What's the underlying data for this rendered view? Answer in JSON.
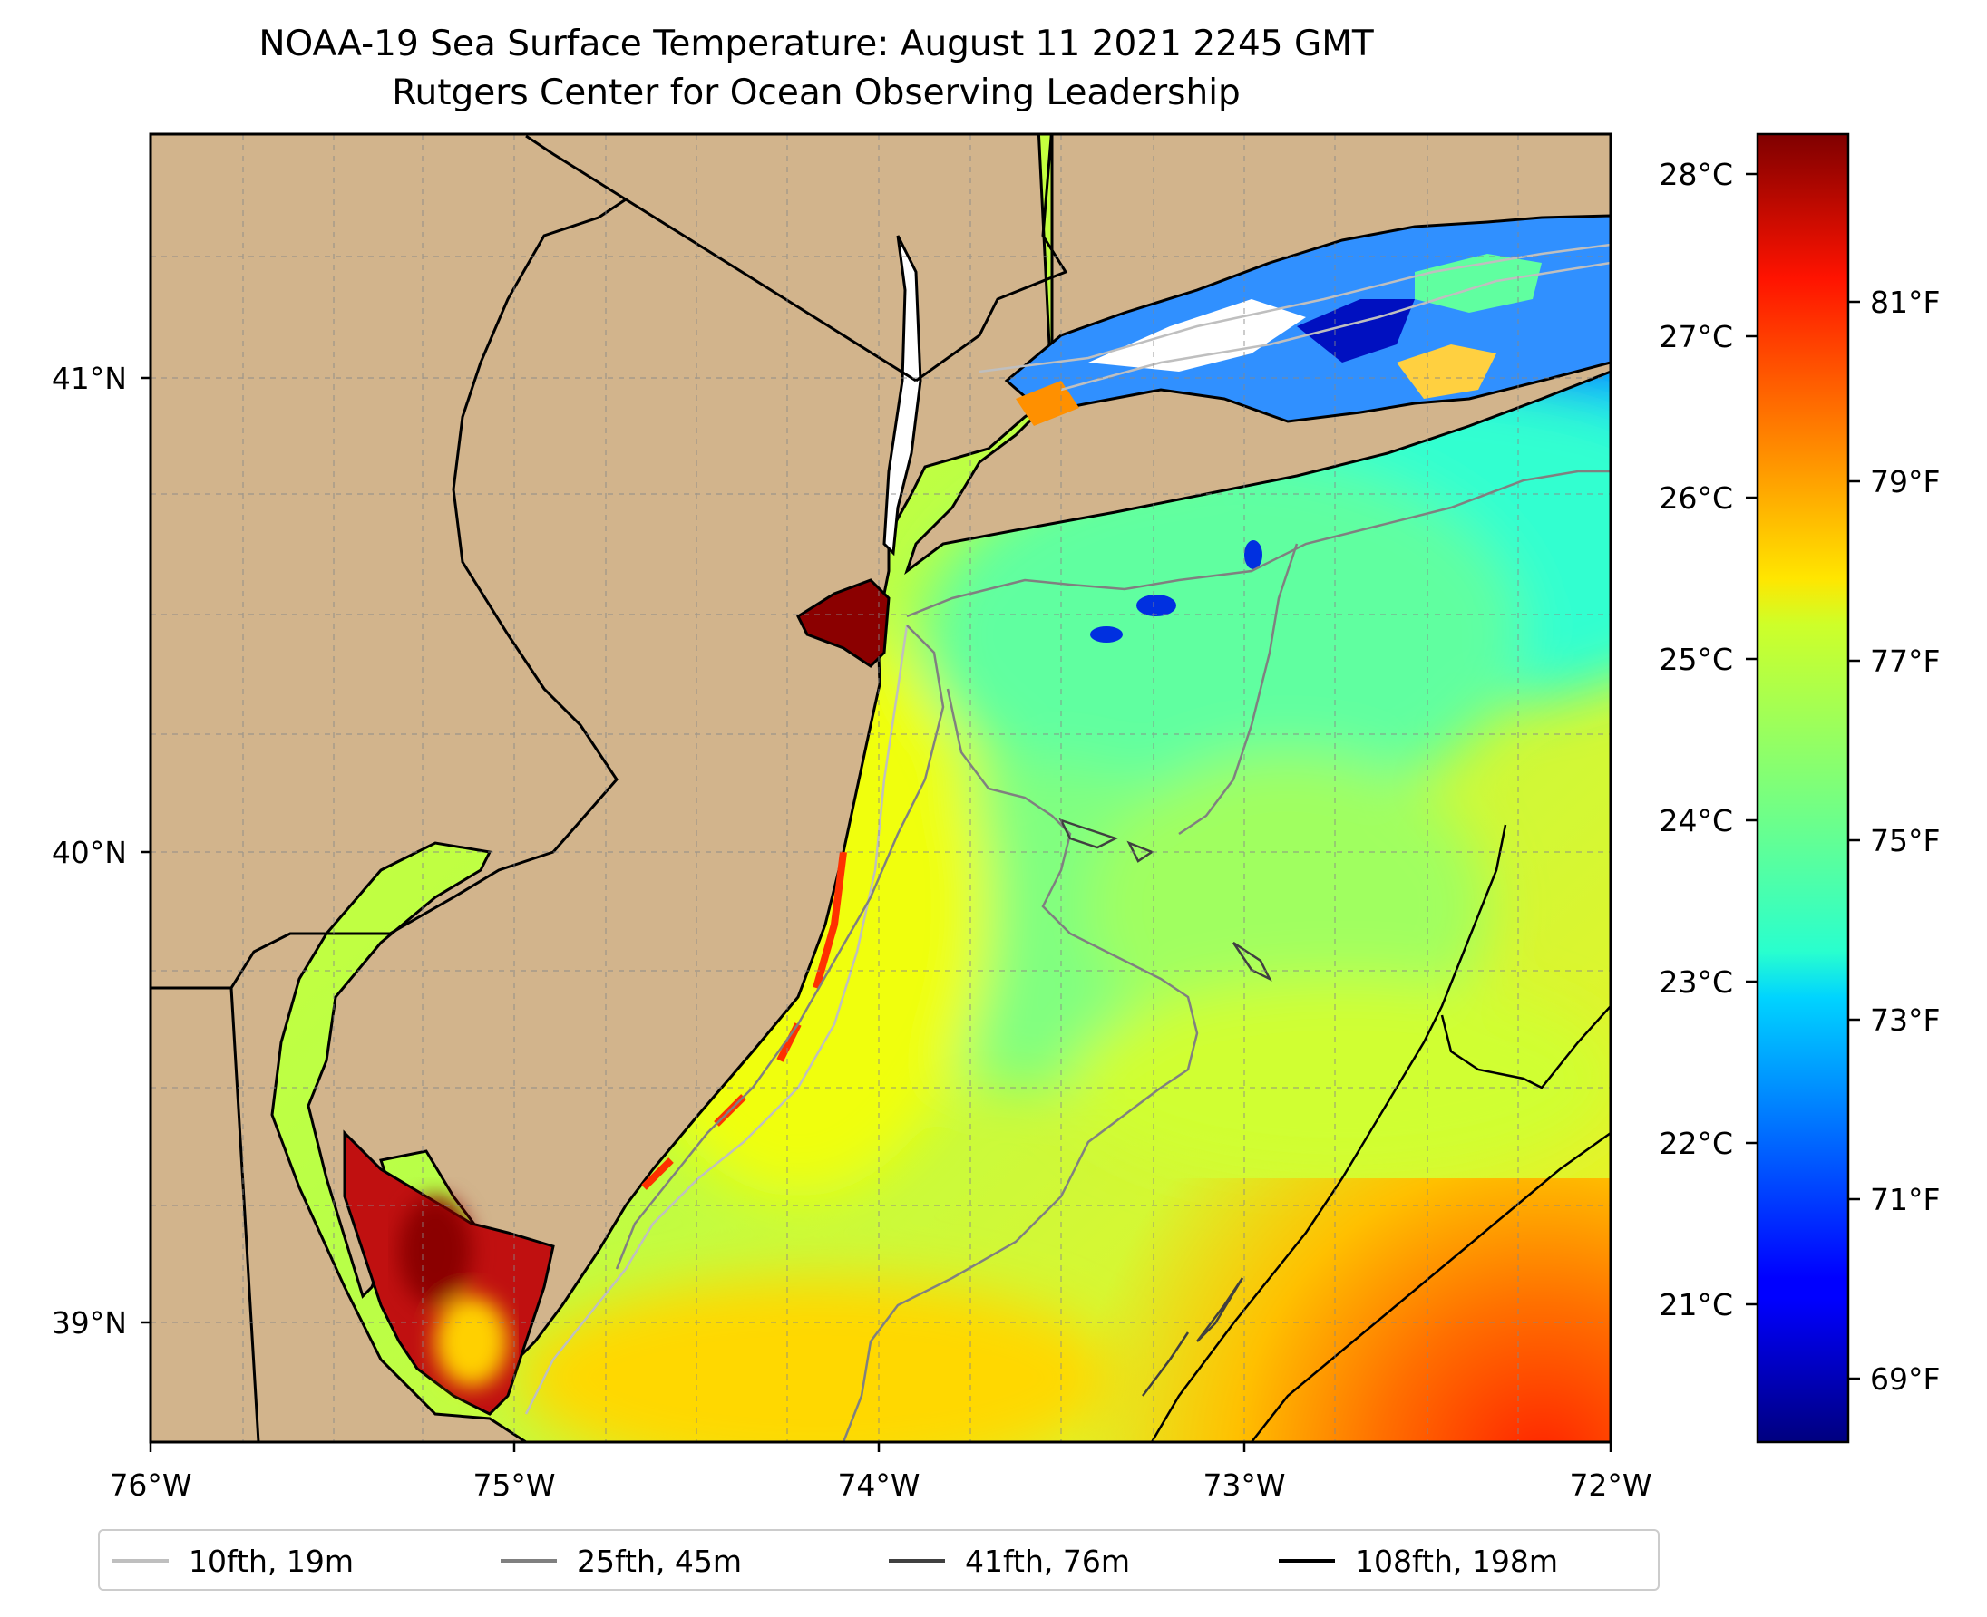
{
  "title": {
    "line1": "NOAA-19 Sea Surface Temperature: August 11 2021 2245 GMT",
    "line2": "Rutgers Center for Ocean Observing Leadership"
  },
  "map": {
    "lon_range": [
      -76,
      -72
    ],
    "lat_range": [
      38.67,
      41.5
    ],
    "lon_ticks": [
      "76°W",
      "75°W",
      "74°W",
      "73°W",
      "72°W"
    ],
    "lat_ticks": [
      "41°N",
      "40°N",
      "39°N"
    ],
    "land_color": "#d2b48c",
    "grid": true
  },
  "colorbar": {
    "colormap": "jet",
    "celsius_range": [
      20.2,
      28.3
    ],
    "celsius_labels": [
      "28°C",
      "27°C",
      "26°C",
      "25°C",
      "24°C",
      "23°C",
      "22°C",
      "21°C"
    ],
    "fahrenheit_labels": [
      "81°F",
      "79°F",
      "77°F",
      "75°F",
      "73°F",
      "71°F",
      "69°F"
    ]
  },
  "legend": {
    "items": [
      {
        "label": "10fth, 19m",
        "color": "#bfbfbf"
      },
      {
        "label": "25fth, 45m",
        "color": "#808080"
      },
      {
        "label": "41fth, 76m",
        "color": "#404040"
      },
      {
        "label": "108fth, 198m",
        "color": "#000000"
      }
    ]
  }
}
